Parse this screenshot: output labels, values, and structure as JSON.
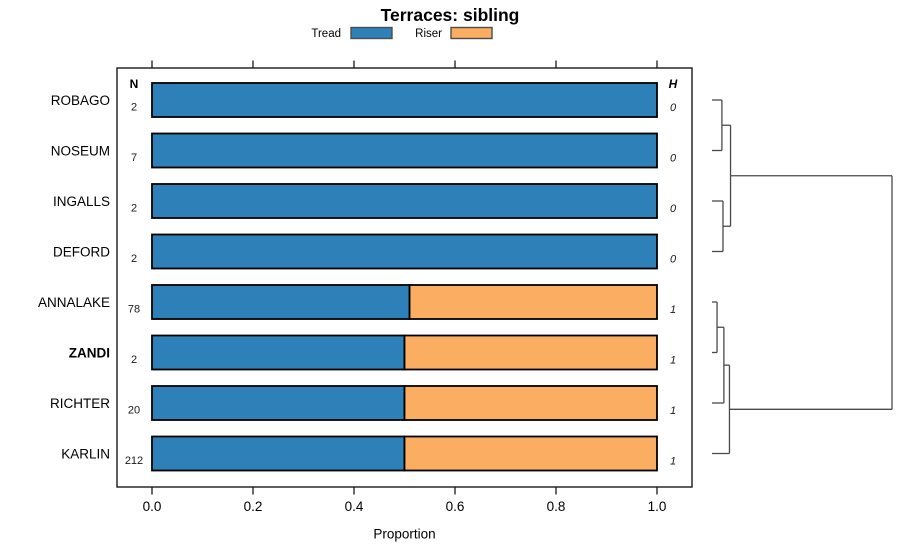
{
  "title": "Terraces: sibling",
  "legend": {
    "items": [
      {
        "label": "Tread",
        "color": "#2e81b8"
      },
      {
        "label": "Riser",
        "color": "#fbad61"
      }
    ]
  },
  "columns": {
    "n_header": "N",
    "h_header": "H"
  },
  "chart_data": {
    "type": "bar",
    "orientation": "horizontal",
    "stacked": true,
    "title": "Terraces: sibling",
    "xlabel": "Proportion",
    "xlim": [
      0,
      1
    ],
    "x_ticks": [
      {
        "value": 0.0,
        "label": "0.0"
      },
      {
        "value": 0.2,
        "label": "0.2"
      },
      {
        "value": 0.4,
        "label": "0.4"
      },
      {
        "value": 0.6,
        "label": "0.6"
      },
      {
        "value": 0.8,
        "label": "0.8"
      },
      {
        "value": 1.0,
        "label": "1.0"
      }
    ],
    "categories": [
      "ROBAGO",
      "NOSEUM",
      "INGALLS",
      "DEFORD",
      "ANNALAKE",
      "ZANDI",
      "RICHTER",
      "KARLIN"
    ],
    "highlighted_category": "ZANDI",
    "series": [
      {
        "name": "Tread",
        "color": "#2e81b8",
        "values": [
          1.0,
          1.0,
          1.0,
          1.0,
          0.51,
          0.5,
          0.5,
          0.5
        ]
      },
      {
        "name": "Riser",
        "color": "#fbad61",
        "values": [
          0.0,
          0.0,
          0.0,
          0.0,
          0.49,
          0.5,
          0.5,
          0.5
        ]
      }
    ],
    "n_values": [
      "2",
      "7",
      "2",
      "2",
      "78",
      "2",
      "20",
      "212"
    ],
    "h_values": [
      "0",
      "0",
      "0",
      "0",
      "1",
      "1",
      "1",
      "1"
    ],
    "bar_border_color": "#000000",
    "dendrogram": {
      "position": "right",
      "line_color": "#4a4a4a",
      "leaf_order": [
        "ROBAGO",
        "NOSEUM",
        "INGALLS",
        "DEFORD",
        "ANNALAKE",
        "ZANDI",
        "RICHTER",
        "KARLIN"
      ],
      "merges": [
        {
          "id": "m1",
          "children": [
            "ROBAGO",
            "NOSEUM"
          ],
          "height": 0.055
        },
        {
          "id": "m2",
          "children": [
            "INGALLS",
            "DEFORD"
          ],
          "height": 0.061
        },
        {
          "id": "m3",
          "children": [
            "m1",
            "m2"
          ],
          "height": 0.103
        },
        {
          "id": "m4",
          "children": [
            "ANNALAKE",
            "ZANDI"
          ],
          "height": 0.028
        },
        {
          "id": "m5",
          "children": [
            "m4",
            "RICHTER"
          ],
          "height": 0.066
        },
        {
          "id": "m6",
          "children": [
            "m5",
            "KARLIN"
          ],
          "height": 0.097
        },
        {
          "id": "root",
          "children": [
            "m3",
            "m6"
          ],
          "height": 1.0
        }
      ]
    }
  }
}
